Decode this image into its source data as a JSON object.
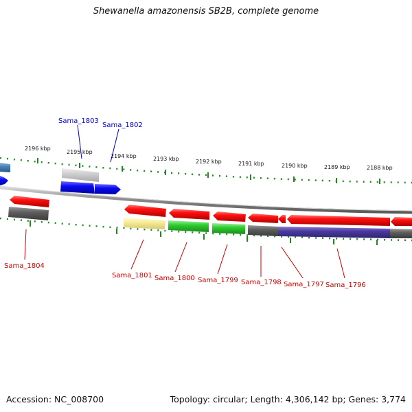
{
  "title": "Shewanella amazonensis SB2B, complete genome",
  "footer": {
    "accession": "Accession: NC_008700",
    "summary": "Topology: circular; Length: 4,306,142 bp; Genes: 3,774"
  },
  "scale_labels": [
    "2196 kbp",
    "2195 kbp",
    "2194 kbp",
    "2193 kbp",
    "2192 kbp",
    "2191 kbp",
    "2190 kbp",
    "2189 kbp",
    "2188 kbp"
  ],
  "gene_labels_top": [
    "Sama_1803",
    "Sama_1802"
  ],
  "gene_labels_bottom": [
    "Sama_1804",
    "Sama_1801",
    "Sama_1800",
    "Sama_1799",
    "Sama_1798",
    "Sama_1797",
    "Sama_1796"
  ],
  "colors": {
    "forward_strand_label": "#0000cc",
    "reverse_strand_label": "#cc0000",
    "tick": "#228822",
    "backbone": "#888888"
  }
}
